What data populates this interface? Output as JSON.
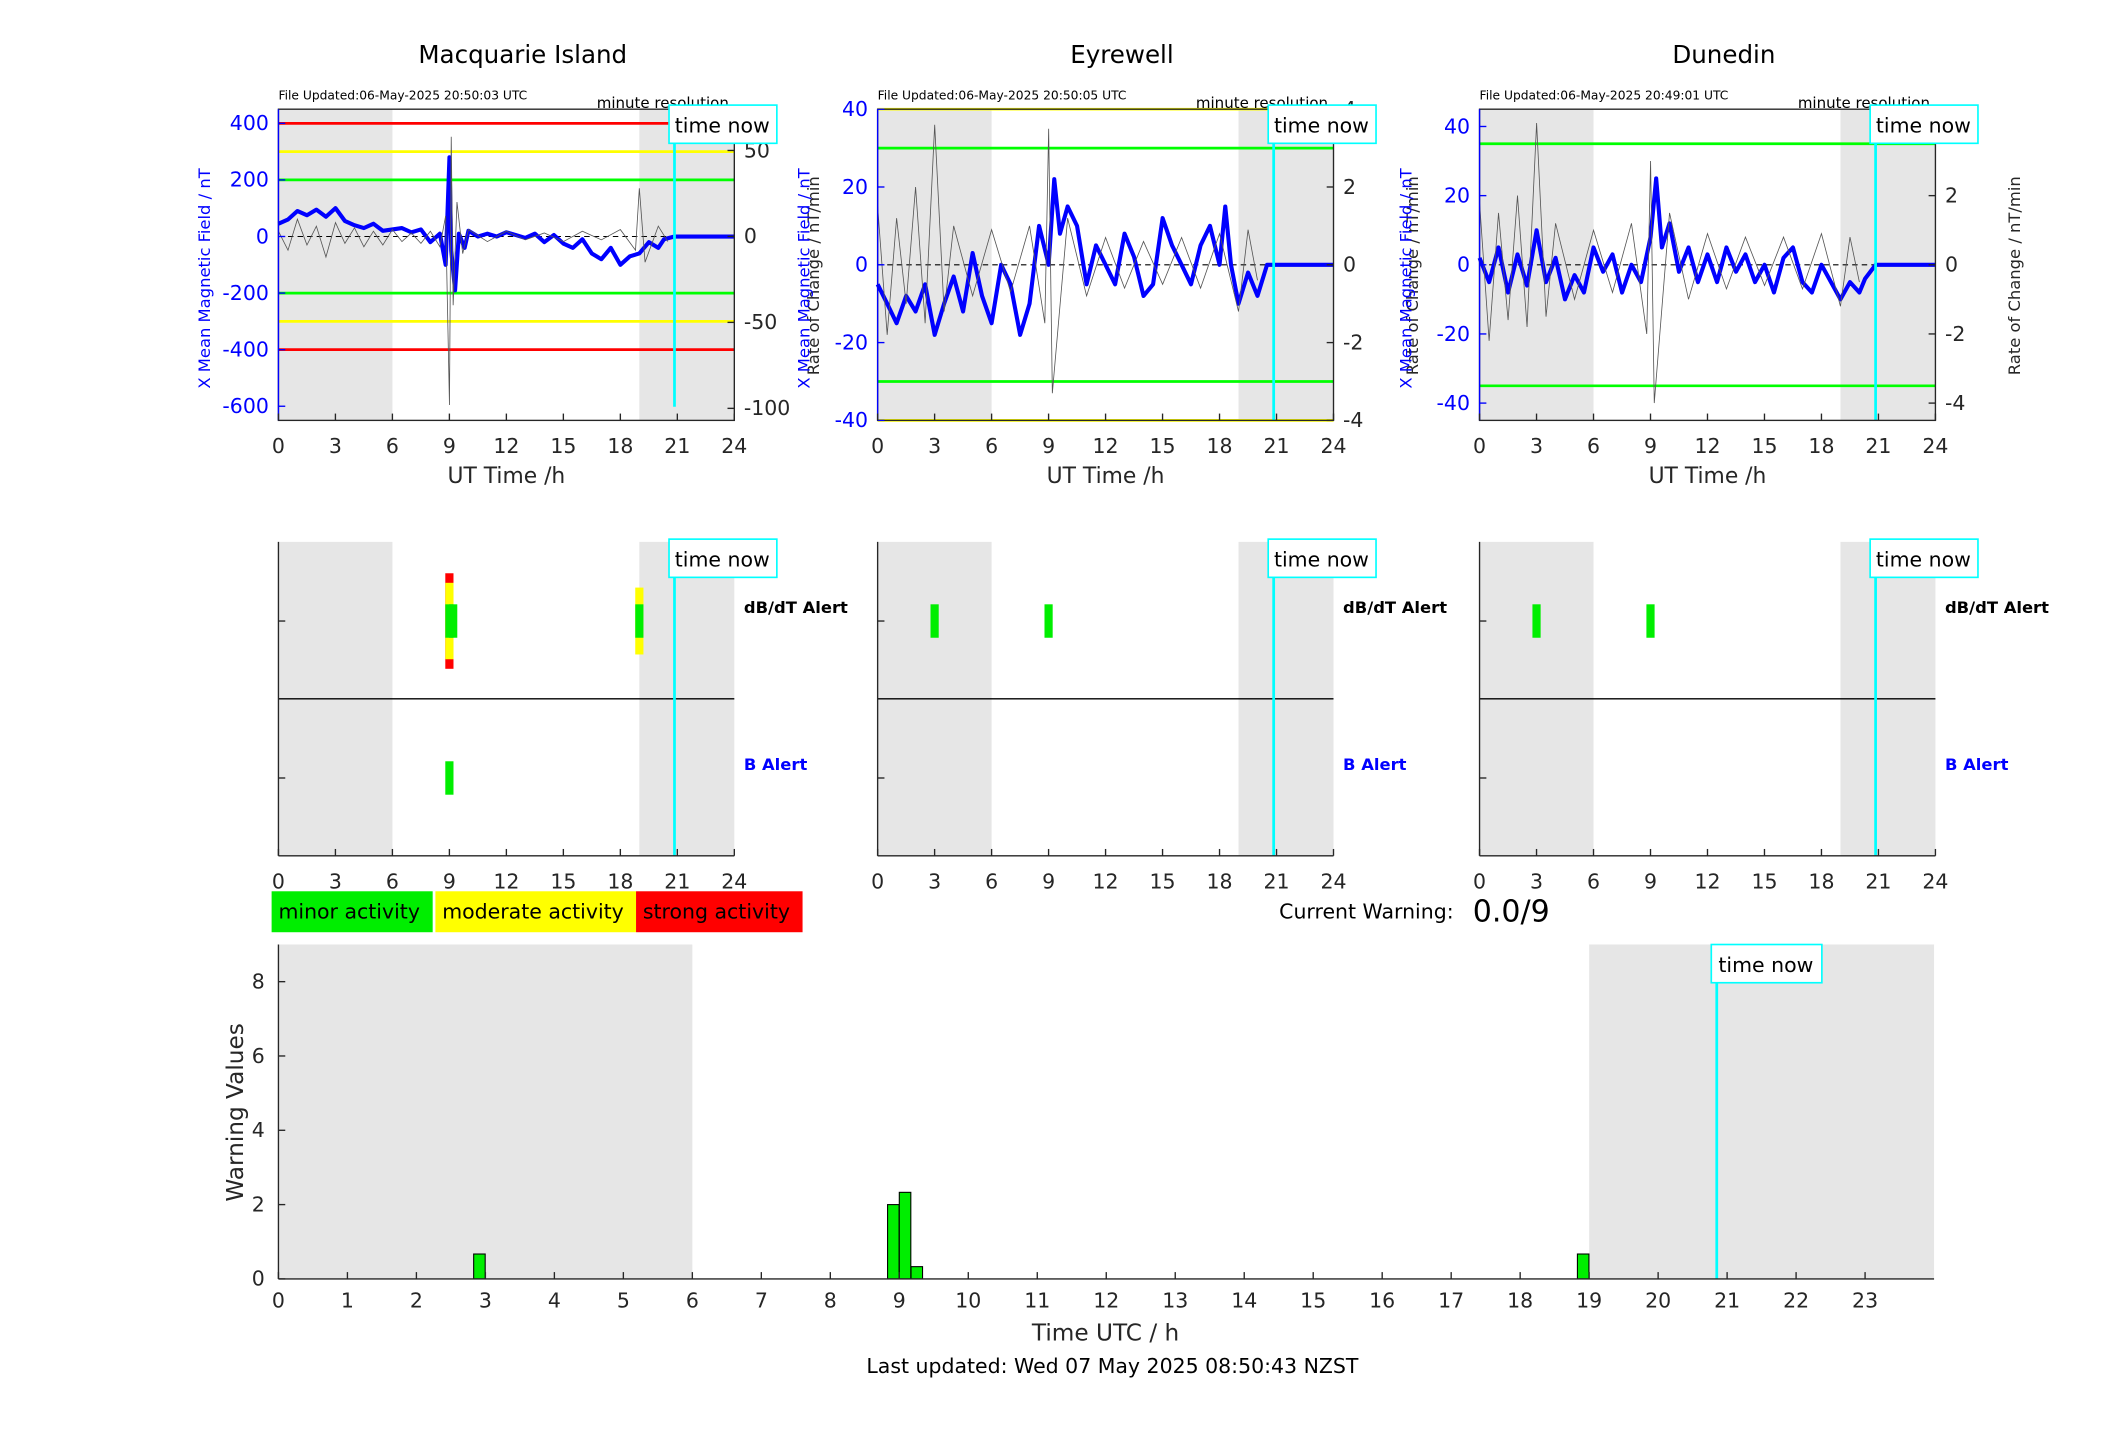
{
  "stations": [
    {
      "name": "Macquarie Island",
      "file_updated": "File Updated:06-May-2025 20:50:03 UTC",
      "resolution": "minute resolution",
      "left_ylabel": "X Mean Magnetic Field / nT",
      "right_ylabel": "Rate of Change / nT/min",
      "left_ticks": [
        400,
        200,
        0,
        -200,
        -400,
        -600
      ],
      "right_ticks": [
        50,
        0,
        -50,
        -100
      ],
      "alert_marks": [
        {
          "row": "dbdt",
          "hour": 9.0,
          "color": "#ff0000",
          "lo": -1.0,
          "hi": 1.0
        },
        {
          "row": "dbdt",
          "hour": 9.0,
          "color": "#ffff00",
          "lo": -0.8,
          "hi": 0.8
        },
        {
          "row": "dbdt",
          "hour": 9.0,
          "color": "#00ee00",
          "lo": -0.35,
          "hi": 0.35
        },
        {
          "row": "dbdt",
          "hour": 9.2,
          "color": "#00ee00",
          "lo": -0.35,
          "hi": 0.35
        },
        {
          "row": "dbdt",
          "hour": 19.0,
          "color": "#ffff00",
          "lo": -0.7,
          "hi": 0.7
        },
        {
          "row": "dbdt",
          "hour": 19.0,
          "color": "#00ee00",
          "lo": -0.35,
          "hi": 0.35
        },
        {
          "row": "b",
          "hour": 9.0,
          "color": "#00ee00",
          "lo": -0.35,
          "hi": 0.35
        }
      ]
    },
    {
      "name": "Eyrewell",
      "file_updated": "File Updated:06-May-2025 20:50:05 UTC",
      "resolution": "minute resolution",
      "left_ylabel": "X Mean Magnetic Field / nT",
      "right_ylabel": "Rate of Change / nT/min",
      "left_ticks": [
        40,
        20,
        0,
        -20,
        -40
      ],
      "right_ticks": [
        4,
        2,
        0,
        -2,
        -4
      ],
      "alert_marks": [
        {
          "row": "dbdt",
          "hour": 3.0,
          "color": "#00ee00",
          "lo": -0.35,
          "hi": 0.35
        },
        {
          "row": "dbdt",
          "hour": 9.0,
          "color": "#00ee00",
          "lo": -0.35,
          "hi": 0.35
        }
      ]
    },
    {
      "name": "Dunedin",
      "file_updated": "File Updated:06-May-2025 20:49:01 UTC",
      "resolution": "minute resolution",
      "left_ylabel": "X Mean Magnetic Field / nT",
      "right_ylabel": "Rate of Change / nT/min",
      "left_ticks": [
        40,
        20,
        0,
        -20,
        -40
      ],
      "right_ticks": [
        4,
        2,
        0,
        -2,
        -4
      ],
      "alert_marks": [
        {
          "row": "dbdt",
          "hour": 3.0,
          "color": "#00ee00",
          "lo": -0.35,
          "hi": 0.35
        },
        {
          "row": "dbdt",
          "hour": 9.0,
          "color": "#00ee00",
          "lo": -0.35,
          "hi": 0.35
        }
      ]
    }
  ],
  "common": {
    "time_now_label": "time now",
    "xlabel": "UT Time /h",
    "hour_ticks": [
      0,
      3,
      6,
      9,
      12,
      15,
      18,
      21,
      24
    ],
    "time_now_hour": 20.85,
    "night_shading": [
      [
        0,
        6
      ],
      [
        19,
        24
      ]
    ],
    "dbdt_alert_label": "dB/dT Alert",
    "b_alert_label": "B Alert"
  },
  "legend": [
    {
      "label": "minor activity",
      "color": "#00ee00"
    },
    {
      "label": "moderate activity",
      "color": "#ffff00"
    },
    {
      "label": "strong activity",
      "color": "#ff0000"
    }
  ],
  "current_warning": {
    "label": "Current Warning:",
    "value": "0.0/9"
  },
  "footer": "Last updated: Wed 07 May 2025 08:50:43 NZST",
  "colors": {
    "field": "#0000ff",
    "threshold_green": "#00ff00",
    "threshold_yellow": "#ffff00",
    "threshold_red": "#ff0000",
    "time_now": "#00ffff",
    "night": "#e6e6e6"
  },
  "chart_data": [
    {
      "type": "line",
      "title": "Macquarie Island",
      "xlabel": "UT Time /h",
      "ylabel": "X Mean Magnetic Field / nT",
      "y2label": "Rate of Change / nT/min",
      "xlim": [
        0,
        24
      ],
      "ylim": [
        -650,
        450
      ],
      "y2lim": [
        -107,
        74
      ],
      "thresholds": [
        {
          "value": 400,
          "color": "#ff0000"
        },
        {
          "value": 300,
          "color": "#ffff00"
        },
        {
          "value": 200,
          "color": "#00ff00"
        },
        {
          "value": -200,
          "color": "#00ff00"
        },
        {
          "value": -300,
          "color": "#ffff00"
        },
        {
          "value": -400,
          "color": "#ff0000"
        }
      ],
      "series": [
        {
          "role": "field",
          "x": [
            0,
            0.5,
            1,
            1.5,
            2,
            2.5,
            3,
            3.5,
            4,
            4.5,
            5,
            5.5,
            6,
            6.5,
            7,
            7.5,
            8,
            8.5,
            8.8,
            9.0,
            9.1,
            9.3,
            9.5,
            9.8,
            10,
            10.5,
            11,
            11.5,
            12,
            12.5,
            13,
            13.5,
            14,
            14.5,
            15,
            15.5,
            16,
            16.5,
            17,
            17.5,
            18,
            18.5,
            19,
            19.5,
            20,
            20.3,
            20.85,
            24
          ],
          "values": [
            45,
            60,
            90,
            75,
            95,
            70,
            100,
            55,
            40,
            30,
            45,
            20,
            25,
            30,
            15,
            25,
            -20,
            10,
            -100,
            280,
            -50,
            -190,
            10,
            -40,
            20,
            0,
            10,
            0,
            15,
            5,
            -5,
            10,
            -20,
            5,
            -25,
            -40,
            -10,
            -60,
            -80,
            -40,
            -100,
            -70,
            -60,
            -20,
            -40,
            -10,
            0,
            0
          ]
        },
        {
          "role": "rate",
          "x": [
            0,
            0.5,
            1,
            1.5,
            2,
            2.5,
            3,
            3.5,
            4,
            4.5,
            5,
            5.5,
            6,
            6.5,
            7,
            7.5,
            8,
            8.5,
            8.8,
            9.0,
            9.1,
            9.2,
            9.4,
            9.7,
            10,
            11,
            12,
            13,
            14,
            15,
            16,
            17,
            18,
            18.8,
            19.0,
            19.3,
            20,
            20.5
          ],
          "values": [
            3,
            -8,
            10,
            -5,
            6,
            -12,
            8,
            -4,
            5,
            -6,
            3,
            -5,
            4,
            -3,
            2,
            -4,
            3,
            -6,
            12,
            -98,
            58,
            -40,
            20,
            -10,
            4,
            -3,
            3,
            -2,
            2,
            -3,
            3,
            -2,
            4,
            -8,
            28,
            -15,
            6,
            -3
          ]
        }
      ]
    },
    {
      "type": "line",
      "title": "Eyrewell",
      "xlabel": "UT Time /h",
      "ylabel": "X Mean Magnetic Field / nT",
      "y2label": "Rate of Change / nT/min",
      "xlim": [
        0,
        24
      ],
      "ylim": [
        -40,
        40
      ],
      "y2lim": [
        -4,
        4
      ],
      "thresholds": [
        {
          "value": 40,
          "color": "#ffff00"
        },
        {
          "value": 30,
          "color": "#00ff00"
        },
        {
          "value": -30,
          "color": "#00ff00"
        },
        {
          "value": -40,
          "color": "#ffff00"
        }
      ],
      "series": [
        {
          "role": "field",
          "x": [
            0,
            0.5,
            1,
            1.5,
            2,
            2.5,
            3,
            3.5,
            4,
            4.5,
            5,
            5.5,
            6,
            6.5,
            7,
            7.5,
            8,
            8.5,
            9,
            9.3,
            9.6,
            10,
            10.5,
            11,
            11.5,
            12,
            12.5,
            13,
            13.5,
            14,
            14.5,
            15,
            15.5,
            16,
            16.5,
            17,
            17.5,
            18,
            18.3,
            18.6,
            19,
            19.5,
            20,
            20.5,
            24
          ],
          "values": [
            -5,
            -10,
            -15,
            -8,
            -12,
            -5,
            -18,
            -10,
            -3,
            -12,
            3,
            -8,
            -15,
            0,
            -5,
            -18,
            -10,
            10,
            0,
            22,
            8,
            15,
            10,
            -5,
            5,
            0,
            -5,
            8,
            2,
            -8,
            -5,
            12,
            5,
            0,
            -5,
            5,
            10,
            0,
            15,
            0,
            -10,
            -2,
            -8,
            0,
            0
          ]
        },
        {
          "role": "rate",
          "x": [
            0,
            0.5,
            1,
            1.5,
            2,
            2.5,
            3,
            3.5,
            4,
            5,
            6,
            7,
            8,
            8.8,
            9,
            9.2,
            10,
            11,
            12,
            13,
            14,
            15,
            16,
            17,
            18,
            19,
            19.5,
            20
          ],
          "values": [
            1.5,
            -1.8,
            1.2,
            -1.0,
            2.0,
            -1.5,
            3.6,
            -1.2,
            1.0,
            -0.8,
            0.9,
            -0.7,
            1.0,
            -1.5,
            3.5,
            -3.3,
            1.2,
            -0.8,
            0.7,
            -0.6,
            0.6,
            -0.5,
            0.7,
            -0.6,
            0.8,
            -1.2,
            0.9,
            -0.4
          ]
        }
      ]
    },
    {
      "type": "line",
      "title": "Dunedin",
      "xlabel": "UT Time /h",
      "ylabel": "X Mean Magnetic Field / nT",
      "y2label": "Rate of Change / nT/min",
      "xlim": [
        0,
        24
      ],
      "ylim": [
        -45,
        45
      ],
      "y2lim": [
        -4.5,
        4.5
      ],
      "thresholds": [
        {
          "value": 35,
          "color": "#00ff00"
        },
        {
          "value": -35,
          "color": "#00ff00"
        }
      ],
      "series": [
        {
          "role": "field",
          "x": [
            0,
            0.5,
            1,
            1.5,
            2,
            2.5,
            3,
            3.5,
            4,
            4.5,
            5,
            5.5,
            6,
            6.5,
            7,
            7.5,
            8,
            8.5,
            9,
            9.3,
            9.6,
            10,
            10.5,
            11,
            11.5,
            12,
            12.5,
            13,
            13.5,
            14,
            14.5,
            15,
            15.5,
            16,
            16.5,
            17,
            17.5,
            18,
            18.5,
            19,
            19.5,
            20,
            20.3,
            20.85,
            24
          ],
          "values": [
            2,
            -5,
            5,
            -8,
            3,
            -6,
            10,
            -5,
            2,
            -10,
            -3,
            -8,
            5,
            -2,
            3,
            -8,
            0,
            -5,
            8,
            25,
            5,
            12,
            -2,
            5,
            -5,
            3,
            -5,
            5,
            -2,
            3,
            -5,
            0,
            -8,
            2,
            5,
            -5,
            -8,
            0,
            -5,
            -10,
            -5,
            -8,
            -4,
            0,
            0
          ]
        },
        {
          "role": "rate",
          "x": [
            0,
            0.5,
            1,
            1.5,
            2,
            2.5,
            3,
            3.5,
            4,
            5,
            6,
            7,
            8,
            8.8,
            9,
            9.2,
            10,
            11,
            12,
            13,
            14,
            15,
            16,
            17,
            18,
            19,
            19.5,
            20
          ],
          "values": [
            1.8,
            -2.2,
            1.5,
            -1.6,
            2.0,
            -1.8,
            4.1,
            -1.5,
            1.2,
            -1.0,
            1.0,
            -0.8,
            1.2,
            -2.0,
            3.0,
            -4.0,
            1.5,
            -1.0,
            0.9,
            -0.7,
            0.8,
            -0.6,
            0.8,
            -0.7,
            0.9,
            -1.2,
            0.8,
            -0.5
          ]
        }
      ]
    },
    {
      "type": "bar",
      "xlabel": "Time UTC / h",
      "ylabel": "Warning Values",
      "xlim": [
        0,
        24
      ],
      "ylim": [
        0,
        9
      ],
      "x_ticks": [
        0,
        1,
        2,
        3,
        4,
        5,
        6,
        7,
        8,
        9,
        10,
        11,
        12,
        13,
        14,
        15,
        16,
        17,
        18,
        19,
        20,
        21,
        22,
        23
      ],
      "y_ticks": [
        0,
        2,
        4,
        6,
        8
      ],
      "bar_width_h": 0.167,
      "x": [
        2.83,
        8.83,
        9.0,
        9.17,
        18.83
      ],
      "values": [
        0.67,
        2.0,
        2.33,
        0.33,
        0.67
      ]
    }
  ]
}
